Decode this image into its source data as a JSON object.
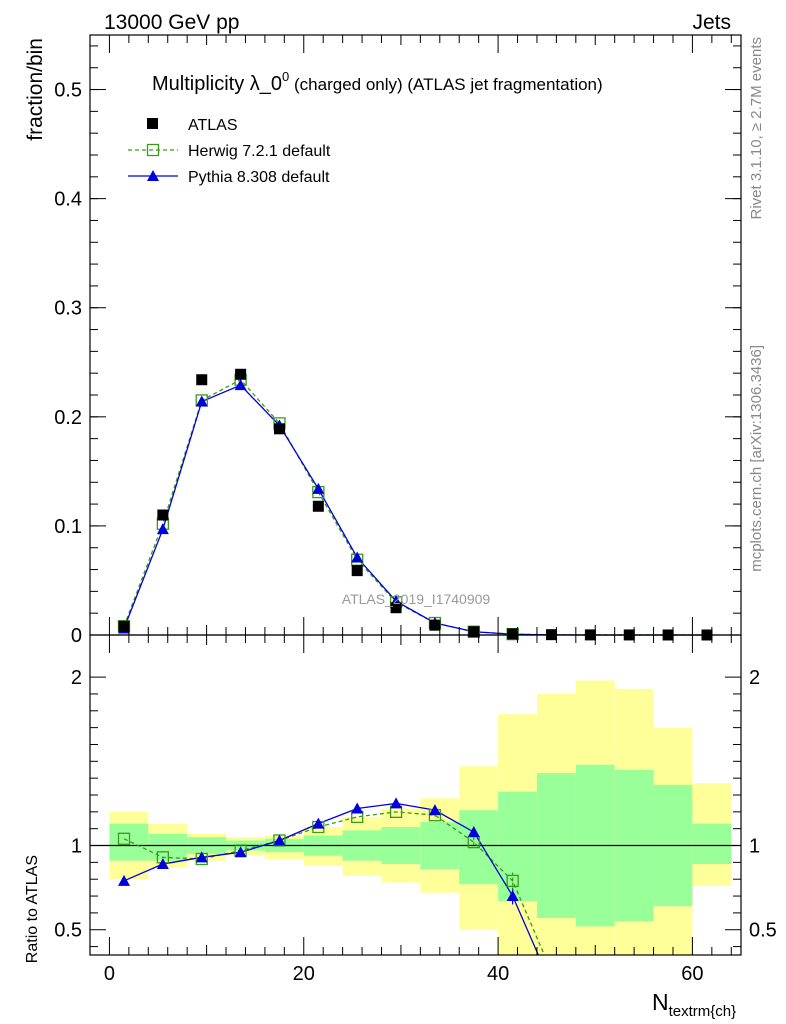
{
  "header": {
    "left": "13000 GeV pp",
    "right": "Jets"
  },
  "side": {
    "rivet": "Rivet 3.1.10, ≥ 2.7M events",
    "mcplots": "mcplots.cern.ch [arXiv:1306.3436]"
  },
  "watermark": "ATLAS_2019_I1740909",
  "colors": {
    "atlas": "#000000",
    "herwig": "#3a9a1a",
    "pythia": "#0000dd",
    "band_inner": "#99ff99",
    "band_outer": "#ffff99"
  },
  "chart_data": [
    {
      "type": "line",
      "panel": "main",
      "title_main": "Multiplicity λ_0",
      "title_sup": "0",
      "title_rest": " (charged only) (ATLAS jet fragmentation)",
      "xlabel_main": "N",
      "xlabel_sub": "textrm{ch}",
      "ylabel": "fraction/bin",
      "xlim": [
        -2,
        65
      ],
      "ylim": [
        0,
        0.55
      ],
      "yticks": [
        0,
        0.1,
        0.2,
        0.3,
        0.4,
        0.5
      ],
      "ytick_labels": [
        "0",
        "0.1",
        "0.2",
        "0.3",
        "0.4",
        "0.5"
      ],
      "x": [
        1.5,
        5.5,
        9.5,
        13.5,
        17.5,
        21.5,
        25.5,
        29.5,
        33.5,
        37.5,
        41.5,
        45.5,
        49.5,
        53.5,
        57.5,
        61.5
      ],
      "series": [
        {
          "name": "ATLAS",
          "marker": "square",
          "values": [
            0.008,
            0.11,
            0.234,
            0.239,
            0.189,
            0.118,
            0.059,
            0.025,
            0.009,
            0.003,
            0.001,
            0.0003,
            0.0001,
            5e-05,
            2e-05,
            1e-05
          ]
        },
        {
          "name": "Herwig 7.2.1 default",
          "marker": "open-square",
          "style": "dashed",
          "values": [
            0.008,
            0.102,
            0.215,
            0.234,
            0.194,
            0.131,
            0.069,
            0.03,
            0.011,
            0.003,
            0.0008,
            0.0002,
            5e-05,
            0,
            0,
            0
          ]
        },
        {
          "name": "Pythia 8.308 default",
          "marker": "triangle",
          "style": "solid",
          "values": [
            0.006,
            0.097,
            0.214,
            0.229,
            0.192,
            0.134,
            0.071,
            0.031,
            0.011,
            0.003,
            0.0007,
            0.0001,
            2e-05,
            0,
            0,
            0
          ]
        }
      ]
    },
    {
      "type": "line",
      "panel": "ratio",
      "ylabel": "Ratio to ATLAS",
      "xlim": [
        -2,
        65
      ],
      "ylim": [
        0.35,
        2.25
      ],
      "yticks": [
        0.5,
        1,
        2
      ],
      "ytick_labels": [
        "0.5",
        "1",
        "2"
      ],
      "xticks": [
        0,
        20,
        40,
        60
      ],
      "xtick_labels": [
        "0",
        "20",
        "40",
        "60"
      ],
      "bins": [
        [
          0,
          4
        ],
        [
          4,
          8
        ],
        [
          8,
          12
        ],
        [
          12,
          16
        ],
        [
          16,
          20
        ],
        [
          20,
          24
        ],
        [
          24,
          28
        ],
        [
          28,
          32
        ],
        [
          32,
          36
        ],
        [
          36,
          40
        ],
        [
          40,
          44
        ],
        [
          44,
          48
        ],
        [
          48,
          52
        ],
        [
          52,
          56
        ],
        [
          56,
          60
        ],
        [
          60,
          64
        ]
      ],
      "band_inner": [
        [
          0.91,
          1.13
        ],
        [
          0.91,
          1.07
        ],
        [
          0.95,
          1.05
        ],
        [
          0.97,
          1.03
        ],
        [
          0.96,
          1.04
        ],
        [
          0.94,
          1.06
        ],
        [
          0.91,
          1.09
        ],
        [
          0.89,
          1.11
        ],
        [
          0.86,
          1.14
        ],
        [
          0.77,
          1.21
        ],
        [
          0.67,
          1.32
        ],
        [
          0.57,
          1.43
        ],
        [
          0.52,
          1.48
        ],
        [
          0.55,
          1.45
        ],
        [
          0.64,
          1.36
        ],
        [
          0.89,
          1.13
        ]
      ],
      "band_outer": [
        [
          0.8,
          1.2
        ],
        [
          0.87,
          1.13
        ],
        [
          0.91,
          1.07
        ],
        [
          0.94,
          1.05
        ],
        [
          0.92,
          1.06
        ],
        [
          0.88,
          1.11
        ],
        [
          0.82,
          1.17
        ],
        [
          0.78,
          1.22
        ],
        [
          0.72,
          1.28
        ],
        [
          0.5,
          1.47
        ],
        [
          0.35,
          1.78
        ],
        [
          0.35,
          1.9
        ],
        [
          0.35,
          1.98
        ],
        [
          0.35,
          1.93
        ],
        [
          0.35,
          1.7
        ],
        [
          0.76,
          1.37
        ]
      ],
      "x": [
        1.5,
        5.5,
        9.5,
        13.5,
        17.5,
        21.5,
        25.5,
        29.5,
        33.5,
        37.5,
        41.5,
        45.5
      ],
      "series": [
        {
          "name": "Herwig 7.2.1 default",
          "marker": "open-square",
          "style": "dashed",
          "values": [
            1.04,
            0.93,
            0.92,
            0.97,
            1.03,
            1.11,
            1.17,
            1.2,
            1.18,
            1.02,
            0.79,
            0.25
          ]
        },
        {
          "name": "Pythia 8.308 default",
          "marker": "triangle",
          "style": "solid",
          "values": [
            0.79,
            0.89,
            0.93,
            0.96,
            1.03,
            1.13,
            1.22,
            1.25,
            1.21,
            1.08,
            0.7,
            0.17
          ]
        }
      ]
    }
  ]
}
